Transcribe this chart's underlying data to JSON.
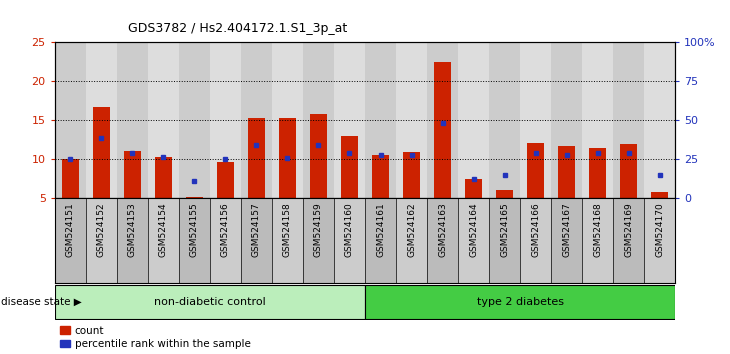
{
  "title": "GDS3782 / Hs2.404172.1.S1_3p_at",
  "samples": [
    "GSM524151",
    "GSM524152",
    "GSM524153",
    "GSM524154",
    "GSM524155",
    "GSM524156",
    "GSM524157",
    "GSM524158",
    "GSM524159",
    "GSM524160",
    "GSM524161",
    "GSM524162",
    "GSM524163",
    "GSM524164",
    "GSM524165",
    "GSM524166",
    "GSM524167",
    "GSM524168",
    "GSM524169",
    "GSM524170"
  ],
  "count_values": [
    10.0,
    16.7,
    11.1,
    10.3,
    5.1,
    9.6,
    15.3,
    15.3,
    15.8,
    13.0,
    10.5,
    11.0,
    22.5,
    7.5,
    6.1,
    12.1,
    11.7,
    11.4,
    12.0,
    5.8
  ],
  "percentile_values": [
    10.0,
    12.7,
    10.8,
    10.3,
    7.2,
    10.0,
    11.9,
    10.2,
    11.9,
    10.8,
    10.5,
    10.5,
    14.6,
    7.5,
    8.0,
    10.8,
    10.5,
    10.8,
    10.8,
    8.0
  ],
  "ylim_left": [
    5,
    25
  ],
  "ylim_right": [
    0,
    100
  ],
  "yticks_left": [
    5,
    10,
    15,
    20,
    25
  ],
  "yticks_right": [
    0,
    25,
    50,
    75,
    100
  ],
  "ytick_labels_right": [
    "0",
    "25",
    "50",
    "75",
    "100%"
  ],
  "bar_color": "#cc2200",
  "blue_color": "#2233bb",
  "grid_color": "black",
  "plot_bg_color": "#ffffff",
  "col_even_color": "#cccccc",
  "col_odd_color": "#dddddd",
  "group1_label": "non-diabetic control",
  "group2_label": "type 2 diabetes",
  "group1_color": "#bbeebb",
  "group2_color": "#44cc44",
  "group1_count": 10,
  "group2_count": 10,
  "left_axis_color": "#cc2200",
  "right_axis_color": "#2233bb",
  "legend_count_label": "count",
  "legend_pct_label": "percentile rank within the sample",
  "disease_state_label": "disease state"
}
